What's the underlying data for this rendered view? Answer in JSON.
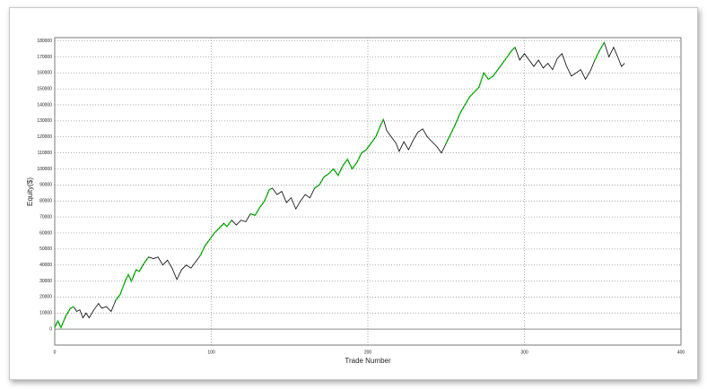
{
  "chart_data": {
    "type": "line",
    "x_label": "Trade Number",
    "y_label": "Equity($)",
    "x": [
      0,
      2,
      4,
      7,
      10,
      12,
      14,
      16,
      18,
      20,
      22,
      25,
      28,
      30,
      33,
      36,
      39,
      42,
      45,
      47,
      49,
      52,
      54,
      57,
      60,
      63,
      66,
      69,
      72,
      75,
      78,
      81,
      84,
      87,
      90,
      93,
      96,
      99,
      102,
      105,
      108,
      110,
      113,
      116,
      119,
      122,
      125,
      128,
      131,
      134,
      137,
      139,
      142,
      145,
      148,
      151,
      154,
      157,
      160,
      163,
      166,
      169,
      172,
      175,
      178,
      181,
      184,
      187,
      190,
      193,
      196,
      199,
      202,
      205,
      208,
      210,
      212,
      215,
      218,
      220,
      223,
      226,
      229,
      232,
      235,
      238,
      241,
      244,
      247,
      250,
      253,
      256,
      259,
      262,
      265,
      268,
      271,
      274,
      277,
      280,
      283,
      286,
      289,
      292,
      294,
      297,
      300,
      303,
      306,
      309,
      312,
      315,
      318,
      321,
      324,
      327,
      330,
      333,
      336,
      339,
      342,
      345,
      348,
      351,
      354,
      357,
      360,
      362,
      364
    ],
    "series": [
      {
        "color": "#000000",
        "values": [
          1000,
          5000,
          1000,
          8000,
          13000,
          14000,
          11000,
          12000,
          7000,
          10000,
          7000,
          12000,
          16000,
          13000,
          14000,
          11000,
          18000,
          22000,
          30000,
          34000,
          30000,
          37000,
          36000,
          41000,
          45000,
          44000,
          45000,
          40000,
          43000,
          38000,
          31000,
          37000,
          40000,
          38000,
          42000,
          46000,
          52000,
          56000,
          60000,
          63000,
          66000,
          64000,
          68000,
          65000,
          68000,
          67000,
          72000,
          71000,
          76000,
          80000,
          87000,
          88000,
          84000,
          86000,
          79000,
          82000,
          75000,
          80000,
          84000,
          82000,
          88000,
          90000,
          95000,
          97000,
          100000,
          96000,
          102000,
          106000,
          100000,
          104000,
          110000,
          112000,
          116000,
          120000,
          127000,
          131000,
          124000,
          120000,
          116000,
          111000,
          117000,
          112000,
          118000,
          123000,
          125000,
          120000,
          117000,
          114000,
          110000,
          116000,
          122000,
          128000,
          135000,
          140000,
          145000,
          148000,
          151000,
          160000,
          156000,
          158000,
          162000,
          166000,
          170000,
          174000,
          176000,
          168000,
          172000,
          168000,
          164000,
          168000,
          163000,
          166000,
          162000,
          169000,
          172000,
          164000,
          158000,
          160000,
          162000,
          156000,
          161000,
          168000,
          174000,
          179000,
          170000,
          176000,
          169000,
          164000,
          166000
        ]
      },
      {
        "color": "#00dd00",
        "values": [
          1000,
          5000,
          1000,
          8000,
          13000,
          14000,
          null,
          null,
          null,
          null,
          null,
          null,
          null,
          null,
          null,
          null,
          18000,
          22000,
          30000,
          34000,
          30000,
          37000,
          36000,
          41000,
          45000,
          null,
          null,
          null,
          null,
          null,
          null,
          null,
          null,
          null,
          null,
          46000,
          52000,
          56000,
          60000,
          63000,
          66000,
          64000,
          68000,
          null,
          null,
          null,
          72000,
          71000,
          76000,
          80000,
          87000,
          88000,
          null,
          null,
          null,
          null,
          null,
          null,
          null,
          null,
          88000,
          90000,
          95000,
          97000,
          100000,
          96000,
          102000,
          106000,
          100000,
          104000,
          110000,
          112000,
          116000,
          120000,
          127000,
          131000,
          null,
          null,
          null,
          null,
          null,
          null,
          null,
          null,
          null,
          null,
          null,
          null,
          null,
          116000,
          122000,
          128000,
          135000,
          140000,
          145000,
          148000,
          151000,
          160000,
          156000,
          158000,
          162000,
          166000,
          170000,
          174000,
          176000,
          null,
          null,
          null,
          null,
          null,
          null,
          null,
          null,
          null,
          null,
          null,
          null,
          null,
          null,
          null,
          null,
          168000,
          174000,
          179000,
          null,
          null,
          null,
          null,
          null
        ]
      }
    ],
    "xlim": [
      0,
      400
    ],
    "xticks": [
      0,
      100,
      200,
      300,
      400
    ],
    "ylim": [
      -10000,
      182000
    ],
    "yticks": [
      0,
      10000,
      20000,
      30000,
      40000,
      50000,
      60000,
      70000,
      80000,
      90000,
      100000,
      110000,
      120000,
      130000,
      140000,
      150000,
      160000,
      170000,
      180000
    ],
    "grid": true
  }
}
